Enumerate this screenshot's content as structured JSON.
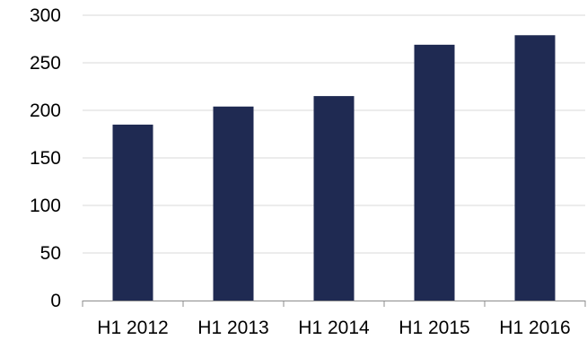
{
  "chart_data": {
    "type": "bar",
    "title": "",
    "xlabel": "",
    "ylabel": "",
    "categories": [
      "H1 2012",
      "H1 2013",
      "H1 2014",
      "H1 2015",
      "H1 2016"
    ],
    "values": [
      185,
      204,
      215,
      269,
      279
    ],
    "ylim": [
      0,
      300
    ],
    "yticks": [
      "0",
      "50",
      "100",
      "150",
      "200",
      "250",
      "300"
    ],
    "grid": true,
    "legend": "none",
    "bar_color": "#1f2a52",
    "grid_color": "#d9d9d9",
    "axis_color": "#8c8c8c"
  }
}
